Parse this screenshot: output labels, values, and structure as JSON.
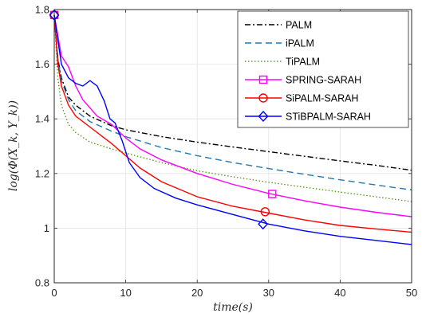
{
  "chart_data": {
    "type": "line",
    "xlabel": "time(s)",
    "ylabel": "log(Φ(X_k, Y_k))",
    "xlim": [
      0,
      50
    ],
    "ylim": [
      0.8,
      1.8
    ],
    "xticks": [
      0,
      10,
      20,
      30,
      40,
      50
    ],
    "yticks": [
      0.8,
      1,
      1.2,
      1.4,
      1.6,
      1.8
    ],
    "xtick_labels": [
      "0",
      "10",
      "20",
      "30",
      "40",
      "50"
    ],
    "ytick_labels": [
      "0.8",
      "1",
      "1.2",
      "1.4",
      "1.6",
      "1.8"
    ],
    "grid": true,
    "legend_position": "top-right",
    "series": [
      {
        "name": "PALM",
        "color": "#000000",
        "dash": "7,3,2,3",
        "marker": "none",
        "points": [
          [
            0,
            1.78
          ],
          [
            0.5,
            1.62
          ],
          [
            1,
            1.55
          ],
          [
            2,
            1.48
          ],
          [
            3,
            1.45
          ],
          [
            5,
            1.41
          ],
          [
            8,
            1.375
          ],
          [
            10,
            1.36
          ],
          [
            15,
            1.335
          ],
          [
            20,
            1.315
          ],
          [
            25,
            1.297
          ],
          [
            30,
            1.28
          ],
          [
            35,
            1.263
          ],
          [
            40,
            1.246
          ],
          [
            45,
            1.23
          ],
          [
            50,
            1.212
          ]
        ]
      },
      {
        "name": "iPALM",
        "color": "#1f77b4",
        "dash": "8,5",
        "marker": "none",
        "points": [
          [
            0,
            1.78
          ],
          [
            0.5,
            1.62
          ],
          [
            1,
            1.54
          ],
          [
            2,
            1.47
          ],
          [
            3,
            1.43
          ],
          [
            5,
            1.39
          ],
          [
            8,
            1.355
          ],
          [
            10,
            1.335
          ],
          [
            15,
            1.295
          ],
          [
            20,
            1.265
          ],
          [
            25,
            1.24
          ],
          [
            30,
            1.218
          ],
          [
            35,
            1.197
          ],
          [
            40,
            1.177
          ],
          [
            45,
            1.158
          ],
          [
            50,
            1.14
          ]
        ]
      },
      {
        "name": "TiPALM",
        "color": "#5a9a1a",
        "dash": "1.5,2.5",
        "marker": "none",
        "points": [
          [
            0,
            1.78
          ],
          [
            0.5,
            1.55
          ],
          [
            1,
            1.45
          ],
          [
            2,
            1.38
          ],
          [
            3,
            1.35
          ],
          [
            5,
            1.315
          ],
          [
            8,
            1.29
          ],
          [
            10,
            1.275
          ],
          [
            15,
            1.24
          ],
          [
            20,
            1.21
          ],
          [
            25,
            1.188
          ],
          [
            30,
            1.168
          ],
          [
            35,
            1.15
          ],
          [
            40,
            1.132
          ],
          [
            45,
            1.115
          ],
          [
            50,
            1.097
          ]
        ]
      },
      {
        "name": "SPRING-SARAH",
        "color": "#ff00ff",
        "dash": "",
        "marker": "square",
        "marker_at": [
          30.5,
          1.125
        ],
        "points": [
          [
            0,
            1.78
          ],
          [
            1,
            1.63
          ],
          [
            2,
            1.59
          ],
          [
            3,
            1.52
          ],
          [
            4,
            1.47
          ],
          [
            6,
            1.41
          ],
          [
            8,
            1.38
          ],
          [
            10,
            1.33
          ],
          [
            12,
            1.29
          ],
          [
            15,
            1.25
          ],
          [
            20,
            1.2
          ],
          [
            25,
            1.16
          ],
          [
            30,
            1.127
          ],
          [
            35,
            1.1
          ],
          [
            40,
            1.077
          ],
          [
            45,
            1.058
          ],
          [
            50,
            1.042
          ]
        ]
      },
      {
        "name": "SiPALM-SARAH",
        "color": "#ff0000",
        "dash": "",
        "marker": "circle",
        "marker_at": [
          29.5,
          1.06
        ],
        "points": [
          [
            0,
            1.78
          ],
          [
            0.5,
            1.6
          ],
          [
            1,
            1.52
          ],
          [
            2,
            1.45
          ],
          [
            3,
            1.41
          ],
          [
            5,
            1.37
          ],
          [
            8,
            1.31
          ],
          [
            10,
            1.265
          ],
          [
            12,
            1.22
          ],
          [
            15,
            1.17
          ],
          [
            20,
            1.115
          ],
          [
            25,
            1.08
          ],
          [
            30,
            1.055
          ],
          [
            35,
            1.03
          ],
          [
            40,
            1.01
          ],
          [
            45,
            0.997
          ],
          [
            50,
            0.985
          ]
        ]
      },
      {
        "name": "STiBPALM-SARAH",
        "color": "#0000ff",
        "dash": "",
        "marker": "diamond",
        "marker_at": [
          29.2,
          1.015
        ],
        "points": [
          [
            0,
            1.78
          ],
          [
            1,
            1.6
          ],
          [
            2,
            1.55
          ],
          [
            3,
            1.53
          ],
          [
            4,
            1.52
          ],
          [
            5,
            1.54
          ],
          [
            6,
            1.52
          ],
          [
            7,
            1.465
          ],
          [
            7.8,
            1.4
          ],
          [
            8.5,
            1.385
          ],
          [
            9.5,
            1.32
          ],
          [
            10.5,
            1.24
          ],
          [
            12,
            1.185
          ],
          [
            14,
            1.145
          ],
          [
            17,
            1.11
          ],
          [
            20,
            1.085
          ],
          [
            25,
            1.05
          ],
          [
            30,
            1.015
          ],
          [
            35,
            0.99
          ],
          [
            40,
            0.97
          ],
          [
            45,
            0.955
          ],
          [
            50,
            0.94
          ]
        ]
      }
    ]
  }
}
